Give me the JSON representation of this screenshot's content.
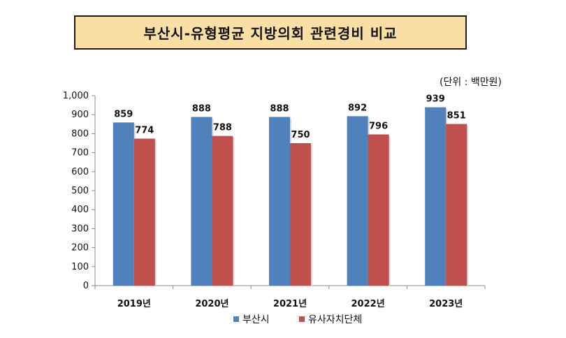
{
  "chart_data": {
    "type": "bar",
    "title": "부산시-유형평균 지방의회 관련경비 비교",
    "unit_note": "(단위 : 백만원)",
    "categories": [
      "2019년",
      "2020년",
      "2021년",
      "2022년",
      "2023년"
    ],
    "series": [
      {
        "name": "부산시",
        "values": [
          859,
          888,
          888,
          892,
          939
        ],
        "color": "#4f81bd"
      },
      {
        "name": "유사자치단체",
        "values": [
          774,
          788,
          750,
          796,
          851
        ],
        "color": "#c0504d"
      }
    ],
    "ylim": [
      0,
      1000
    ],
    "yticks": [
      "0",
      "100",
      "200",
      "300",
      "400",
      "500",
      "600",
      "700",
      "800",
      "900",
      "1,000"
    ],
    "legend_position": "bottom",
    "grid": false
  }
}
